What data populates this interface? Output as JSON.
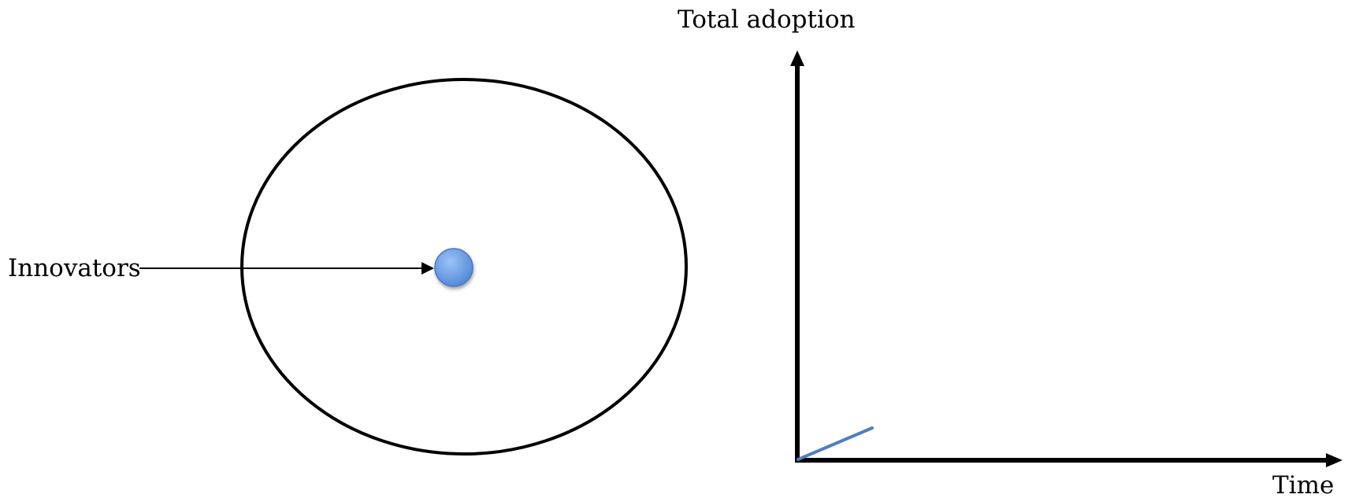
{
  "population_diagram": {
    "innovators_label": "Innovators"
  },
  "adoption_graph": {
    "y_axis_label": "Total adoption",
    "x_axis_label": "Time"
  },
  "colors": {
    "stroke": "#000000",
    "innovator_dot": "#6a9de3",
    "innovator_dot_edge": "#4a78bf",
    "adoption_line": "#4f7fbf"
  }
}
